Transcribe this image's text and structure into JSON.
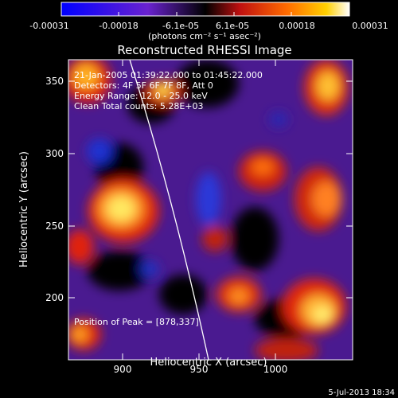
{
  "colorbar": {
    "tick_labels": [
      "-0.00031",
      "-0.00018",
      "-6.1e-05",
      "6.1e-05",
      "0.00018",
      "0.00031"
    ],
    "unit_label": "(photons cm⁻² s⁻¹ asec⁻²)"
  },
  "title": "Reconstructed RHESSI Image",
  "annotations": {
    "time_range": "21-Jan-2005 01:39:22.000 to 01:45:22.000",
    "detectors": "Detectors: 4F 5F 6F 7F 8F, Att 0",
    "energy_range": "Energy Range: 12.0 - 25.0 keV",
    "clean": "Clean  Total counts: 5.28E+03",
    "peak_position": "Position of Peak = [878,337]"
  },
  "axes": {
    "xlabel": "Heliocentric X (arcsec)",
    "ylabel": "Heliocentric Y (arcsec)",
    "x_ticks": [
      "900",
      "950",
      "1000"
    ],
    "y_ticks": [
      "200",
      "250",
      "300",
      "350"
    ],
    "xlim": [
      860,
      1045
    ],
    "ylim": [
      170,
      368
    ]
  },
  "timestamp": "5-Jul-2013 18:34",
  "colors": {
    "background": "#000000",
    "deep_blue": "#1a20b8",
    "purple": "#5a1fa0",
    "red": "#d01810",
    "orange": "#ff8000",
    "yellow": "#ffe840"
  }
}
